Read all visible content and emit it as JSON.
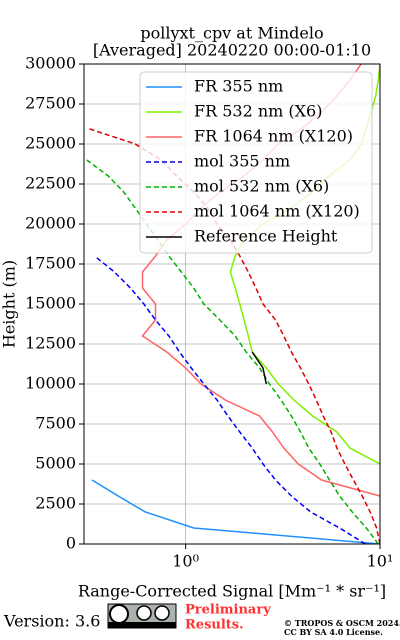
{
  "chart_data": {
    "type": "line",
    "title": "pollyxt_cpv at Mindelo",
    "subtitle": "[Averaged] 20240220 00:00-01:10",
    "x_label": "Range-Corrected Signal [Mm⁻¹ * sr⁻¹]",
    "y_label": "Height (m)",
    "x_scale": "log",
    "xlim": [
      0.3,
      10
    ],
    "xticks": [
      {
        "value": 1,
        "label": "10⁰"
      },
      {
        "value": 10,
        "label": "10¹"
      }
    ],
    "ylim": [
      0,
      30000
    ],
    "yticks": [
      0,
      2500,
      5000,
      7500,
      10000,
      12500,
      15000,
      17500,
      20000,
      22500,
      25000,
      27500,
      30000
    ],
    "grid": true,
    "legend": "upper right",
    "heights": [
      0,
      1000,
      2000,
      3000,
      4000,
      5000,
      6000,
      7000,
      8000,
      9000,
      10000,
      11000,
      12000,
      13000,
      14000,
      15000,
      16000,
      17000,
      18000,
      19000,
      20000,
      21000,
      22000,
      23000,
      24000,
      25000,
      26000,
      27000,
      28000,
      29000,
      30000
    ],
    "series": [
      {
        "name": "FR 355 nm",
        "color": "#1f8fff",
        "style": "solid",
        "values": [
          10,
          1.1,
          0.62,
          0.45,
          0.33,
          null,
          null,
          null,
          null,
          null,
          null,
          null,
          null,
          null,
          null,
          null,
          null,
          null,
          null,
          null,
          null,
          null,
          null,
          null,
          null,
          null,
          null,
          null,
          null,
          null,
          null
        ]
      },
      {
        "name": "FR 532 nm (X6)",
        "color": "#80f000",
        "style": "solid",
        "values": [
          null,
          null,
          null,
          null,
          null,
          10,
          7,
          6,
          4.5,
          3.6,
          3,
          2.6,
          2.2,
          2.1,
          2,
          1.9,
          1.8,
          1.7,
          1.8,
          2,
          2.5,
          3.5,
          4.5,
          5.5,
          7,
          8,
          8.5,
          9,
          9.5,
          9.8,
          10
        ]
      },
      {
        "name": "FR 1064 nm (X120)",
        "color": "#ff6464",
        "style": "solid",
        "values": [
          null,
          null,
          null,
          10,
          5,
          3.8,
          3.2,
          2.8,
          2.4,
          1.6,
          1.2,
          1,
          0.8,
          0.6,
          0.7,
          0.7,
          0.6,
          0.6,
          0.7,
          0.8,
          1,
          1.2,
          1.5,
          2,
          2.5,
          3,
          4,
          5,
          6,
          7,
          8
        ]
      },
      {
        "name": "mol 355 nm",
        "color": "#0000ff",
        "style": "dashed",
        "values": [
          8.4,
          6.2,
          4.4,
          3.5,
          2.9,
          2.5,
          2.2,
          1.9,
          1.65,
          1.45,
          1.24,
          1.07,
          0.93,
          0.82,
          0.7,
          0.61,
          0.52,
          0.43,
          0.34,
          null,
          null,
          null,
          null,
          null,
          null,
          null,
          null,
          null,
          null,
          null,
          null
        ]
      },
      {
        "name": "mol 532 nm (X6)",
        "color": "#00b000",
        "style": "dashed",
        "values": [
          9.8,
          8.5,
          7.2,
          6.2,
          5.5,
          4.9,
          4.3,
          3.9,
          3.5,
          3.1,
          2.7,
          2.4,
          2.05,
          1.8,
          1.5,
          1.24,
          1.1,
          0.95,
          0.82,
          0.72,
          0.63,
          0.55,
          0.48,
          0.4,
          0.31,
          null,
          null,
          null,
          null,
          null,
          null
        ]
      },
      {
        "name": "mol 1064 nm (X120)",
        "color": "#e00000",
        "style": "dashed",
        "values": [
          10,
          9.6,
          8.9,
          8.1,
          7.3,
          6.6,
          6,
          5.6,
          5.1,
          4.7,
          4.3,
          3.9,
          3.5,
          3.2,
          2.9,
          2.5,
          2.3,
          2.1,
          1.9,
          1.7,
          1.45,
          1.3,
          1.1,
          0.9,
          0.75,
          0.55,
          0.31,
          null,
          null,
          null,
          null
        ]
      },
      {
        "name": "Reference Height",
        "color": "#000000",
        "style": "solid",
        "values": [
          null,
          null,
          null,
          null,
          null,
          null,
          null,
          null,
          null,
          null,
          2.6,
          2.5,
          2.2,
          null,
          null,
          null,
          null,
          null,
          null,
          null,
          null,
          null,
          null,
          null,
          null,
          null,
          null,
          null,
          null,
          null,
          null
        ]
      }
    ]
  },
  "footer": {
    "version": "Version: 3.6",
    "preliminary": [
      "Preliminary",
      "Results."
    ],
    "copyright": [
      "© TROPOS & OSCM 2024.",
      "CC BY SA 4.0 License."
    ]
  }
}
